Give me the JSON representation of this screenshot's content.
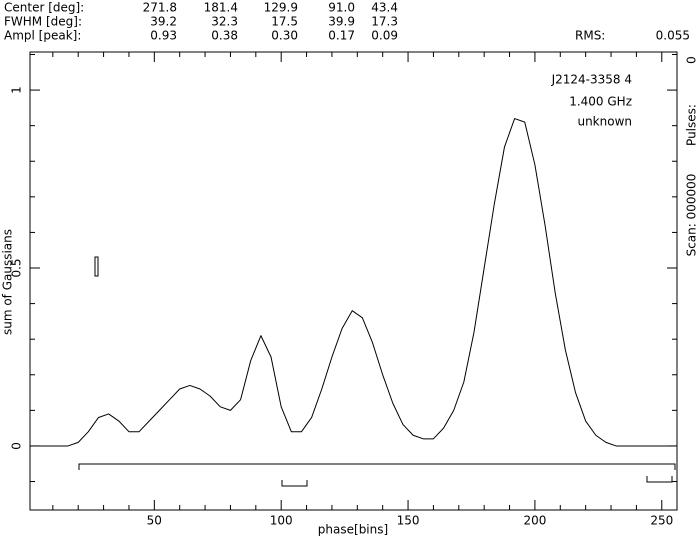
{
  "header": {
    "rows": [
      {
        "label": "Center [deg]:",
        "values": [
          "271.8",
          "181.4",
          "129.9",
          "91.0",
          "43.4"
        ]
      },
      {
        "label": "FWHM  [deg]:",
        "values": [
          "39.2",
          "32.3",
          "17.5",
          "39.9",
          "17.3"
        ]
      },
      {
        "label": "Ampl  [peak]:",
        "values": [
          "0.93",
          "0.38",
          "0.30",
          "0.17",
          "0.09"
        ]
      }
    ],
    "rms_label": "RMS:",
    "rms_value": "0.055"
  },
  "side_labels": {
    "pulses_value": "0",
    "pulses": "Pulses:",
    "scan": "Scan: 000000"
  },
  "chart_data": {
    "type": "line",
    "annotations": [
      "J2124-3358 4",
      "1.400 GHz",
      "unknown"
    ],
    "xlabel": "phase[bins]",
    "ylabel": "sum of Gaussians",
    "xlim": [
      1,
      256
    ],
    "ylim": [
      -0.18,
      1.107
    ],
    "xticks": [
      50,
      100,
      150,
      200,
      250
    ],
    "yticks": [
      0,
      0.5,
      1
    ],
    "xminorticks": [
      10,
      20,
      30,
      40,
      60,
      70,
      80,
      90,
      110,
      120,
      130,
      140,
      160,
      170,
      180,
      190,
      210,
      220,
      230,
      240
    ],
    "yminorticks": [
      -0.1,
      0.1,
      0.2,
      0.3,
      0.4,
      0.6,
      0.7,
      0.8,
      0.9,
      1.1
    ],
    "color": "#000000",
    "x": [
      1,
      4,
      8,
      12,
      16,
      20,
      24,
      28,
      32,
      36,
      40,
      44,
      48,
      52,
      56,
      60,
      64,
      68,
      72,
      76,
      80,
      84,
      88,
      92,
      96,
      100,
      104,
      108,
      112,
      116,
      120,
      124,
      128,
      132,
      136,
      140,
      144,
      148,
      152,
      156,
      160,
      164,
      168,
      172,
      176,
      180,
      184,
      188,
      192,
      196,
      200,
      204,
      208,
      212,
      216,
      220,
      224,
      228,
      232,
      236,
      240,
      244,
      248,
      252,
      256
    ],
    "values": [
      0,
      0,
      0,
      0,
      0,
      0.01,
      0.04,
      0.08,
      0.09,
      0.07,
      0.04,
      0.04,
      0.07,
      0.1,
      0.13,
      0.16,
      0.17,
      0.16,
      0.14,
      0.11,
      0.1,
      0.13,
      0.24,
      0.31,
      0.25,
      0.11,
      0.04,
      0.04,
      0.08,
      0.16,
      0.25,
      0.33,
      0.38,
      0.36,
      0.29,
      0.2,
      0.12,
      0.06,
      0.03,
      0.02,
      0.02,
      0.05,
      0.1,
      0.18,
      0.32,
      0.5,
      0.68,
      0.84,
      0.92,
      0.91,
      0.79,
      0.62,
      0.43,
      0.27,
      0.15,
      0.07,
      0.03,
      0.01,
      0,
      0,
      0,
      0,
      0,
      0,
      0
    ]
  }
}
